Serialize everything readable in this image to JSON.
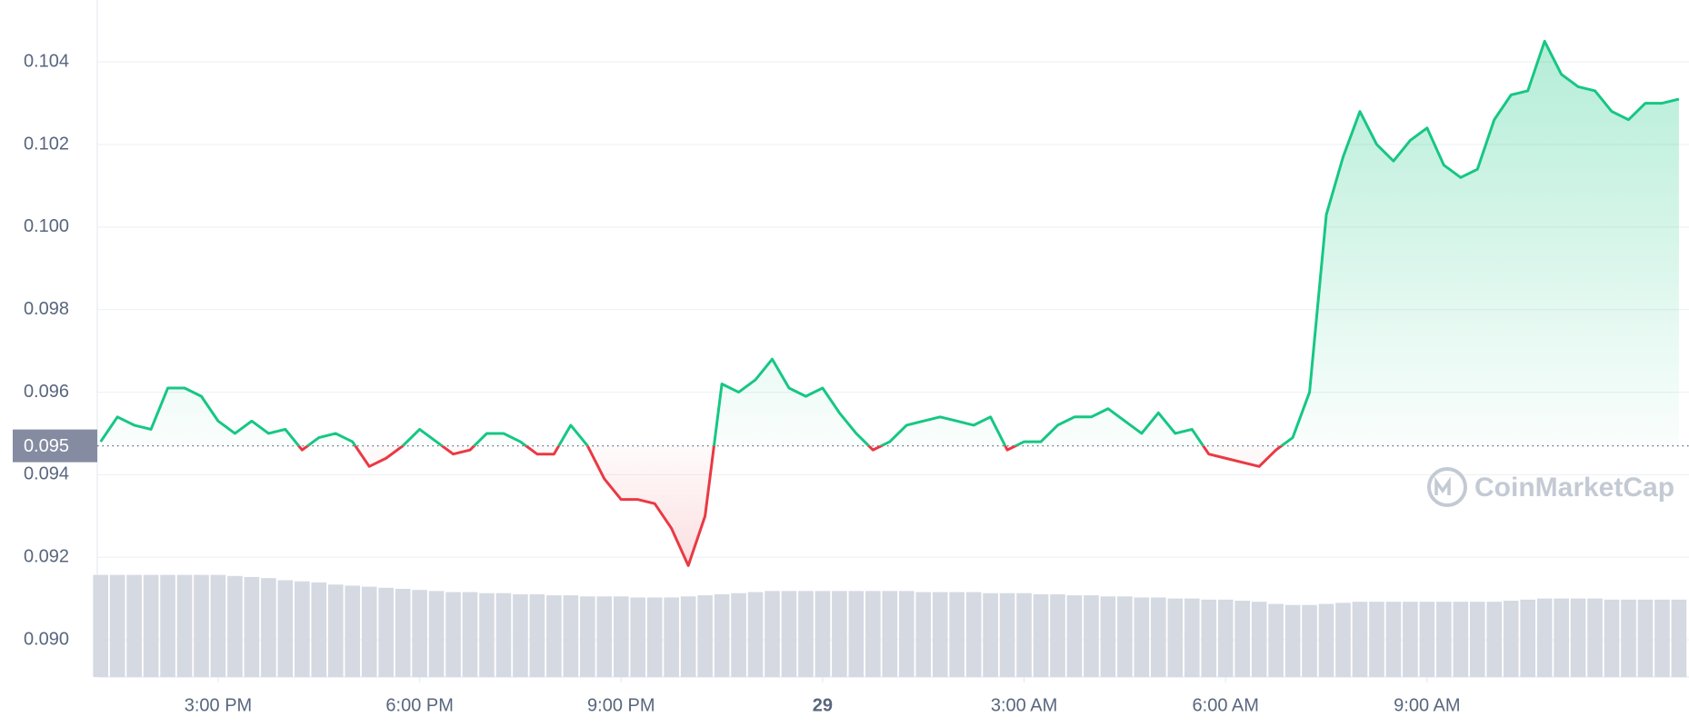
{
  "chart_data": {
    "type": "line",
    "watermark": "CoinMarketCap",
    "x": [
      13.25,
      13.5,
      13.75,
      14,
      14.25,
      14.5,
      14.75,
      15,
      15.25,
      15.5,
      15.75,
      16,
      16.25,
      16.5,
      16.75,
      17,
      17.25,
      17.5,
      17.75,
      18,
      18.25,
      18.5,
      18.75,
      19,
      19.25,
      19.5,
      19.75,
      20,
      20.25,
      20.5,
      20.75,
      21,
      21.25,
      21.5,
      21.75,
      22,
      22.25,
      22.5,
      22.75,
      23,
      23.25,
      23.5,
      23.75,
      24,
      24.25,
      24.5,
      24.75,
      25,
      25.25,
      25.5,
      25.75,
      26,
      26.25,
      26.5,
      26.75,
      27,
      27.25,
      27.5,
      27.75,
      28,
      28.25,
      28.5,
      28.75,
      29,
      29.25,
      29.5,
      29.75,
      30,
      30.25,
      30.5,
      30.75,
      31,
      31.25,
      31.5,
      31.75,
      32,
      32.25,
      32.5,
      32.75,
      33,
      33.25,
      33.5,
      33.75,
      34,
      34.25,
      34.5,
      34.75,
      35,
      35.25,
      35.5,
      35.75,
      36,
      36.25,
      36.5,
      36.75
    ],
    "series": [
      {
        "name": "Price",
        "color": "#16c784",
        "down_color": "#ea3943",
        "values": [
          0.0948,
          0.0954,
          0.0952,
          0.0951,
          0.0961,
          0.0961,
          0.0959,
          0.0953,
          0.095,
          0.0953,
          0.095,
          0.0951,
          0.0946,
          0.0949,
          0.095,
          0.0948,
          0.0942,
          0.0944,
          0.0947,
          0.0951,
          0.0948,
          0.0945,
          0.0946,
          0.095,
          0.095,
          0.0948,
          0.0945,
          0.0945,
          0.0952,
          0.0947,
          0.0939,
          0.0934,
          0.0934,
          0.0933,
          0.0927,
          0.0918,
          0.093,
          0.0962,
          0.096,
          0.0963,
          0.0968,
          0.0961,
          0.0959,
          0.0961,
          0.0955,
          0.095,
          0.0946,
          0.0948,
          0.0952,
          0.0953,
          0.0954,
          0.0953,
          0.0952,
          0.0954,
          0.0946,
          0.0948,
          0.0948,
          0.0952,
          0.0954,
          0.0954,
          0.0956,
          0.0953,
          0.095,
          0.0955,
          0.095,
          0.0951,
          0.0945,
          0.0944,
          0.0943,
          0.0942,
          0.0946,
          0.0949,
          0.096,
          0.1003,
          0.1017,
          0.1028,
          0.102,
          0.1016,
          0.1021,
          0.1024,
          0.1015,
          0.1012,
          0.1014,
          0.1026,
          0.1032,
          0.1033,
          0.1045,
          0.1037,
          0.1034,
          0.1033,
          0.1028,
          0.1026,
          0.103,
          0.103,
          0.1031
        ]
      },
      {
        "name": "Volume",
        "color": "#d5d9e2",
        "values": [
          95,
          95,
          95,
          95,
          95,
          95,
          95,
          95,
          94,
          93,
          92,
          90,
          89,
          88,
          86,
          85,
          84,
          83,
          82,
          81,
          80,
          79,
          79,
          78,
          78,
          77,
          77,
          76,
          76,
          75,
          75,
          75,
          74,
          74,
          74,
          75,
          76,
          77,
          78,
          79,
          80,
          80,
          80,
          80,
          80,
          80,
          80,
          80,
          80,
          79,
          79,
          79,
          79,
          78,
          78,
          78,
          77,
          77,
          76,
          76,
          75,
          75,
          74,
          74,
          73,
          73,
          72,
          72,
          71,
          70,
          68,
          67,
          67,
          68,
          69,
          70,
          70,
          70,
          70,
          70,
          70,
          70,
          70,
          70,
          71,
          72,
          73,
          73,
          73,
          73,
          72,
          72,
          72,
          72,
          72
        ]
      }
    ],
    "baseline": {
      "value": 0.0947,
      "label": "0.095"
    },
    "xlim": [
      13.2,
      36.9
    ],
    "xticks": [
      {
        "value": 15,
        "label": "3:00 PM"
      },
      {
        "value": 18,
        "label": "6:00 PM"
      },
      {
        "value": 21,
        "label": "9:00 PM"
      },
      {
        "value": 24,
        "label": "29"
      },
      {
        "value": 27,
        "label": "3:00 AM"
      },
      {
        "value": 30,
        "label": "6:00 AM"
      },
      {
        "value": 33,
        "label": "9:00 AM"
      }
    ],
    "ylim": [
      0.0891,
      0.1055
    ],
    "yticks": [
      {
        "value": 0.09,
        "label": "0.090"
      },
      0.092,
      0.094,
      0.096,
      0.098,
      {
        "value": 0.1,
        "label": "0.100"
      },
      0.102,
      0.104
    ],
    "grid": true
  }
}
